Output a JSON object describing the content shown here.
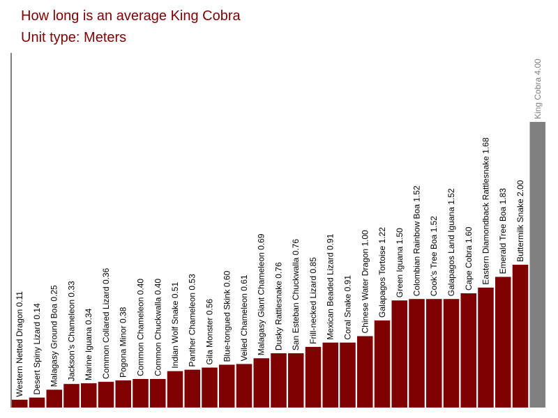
{
  "colors": {
    "bar": "#7f0000",
    "highlight_bar": "#808080",
    "label": "#000000",
    "highlight_label": "#808080",
    "title": "#7f0000",
    "axis": "#000000"
  },
  "chart_data": {
    "type": "bar",
    "title": "How long is an average King Cobra",
    "subtitle": "Unit type: Meters",
    "xlabel": "",
    "ylabel": "",
    "ylim": [
      0,
      4.5
    ],
    "grid": false,
    "categories": [
      "Western Netted Dragon",
      "Desert Spiny Lizard",
      "Malagasy Ground Boa",
      "Jackson’s Chameleon",
      "Marine Iguana",
      "Common Collared Lizard",
      "Pogona Minor",
      "Common Chameleon",
      "Common Chuckwalla",
      "Indian Wolf Snake",
      "Panther Chameleon",
      "Gila Monster",
      "Blue-tongued Skink",
      "Veiled Chameleon",
      "Malagasy Giant Chameleon",
      "Dusky Rattlesnake",
      "San Esteban Chuckwalla",
      "Frill-necked Lizard",
      "Mexican Beaded Lizard",
      "Coral Snake",
      "Chinese Water Dragon",
      "Galapagos Tortoise",
      "Green Iguana",
      "Colombian Rainbow Boa",
      "Cook’s Tree Boa",
      "Galapagos Land Iguana ",
      "Cape Cobra",
      "Eastern Diamondback Rattlesnake",
      "Emerald Tree Boa",
      "Buttermilk Snake",
      "King Cobra"
    ],
    "values": [
      0.11,
      0.14,
      0.25,
      0.33,
      0.34,
      0.36,
      0.38,
      0.4,
      0.4,
      0.51,
      0.53,
      0.56,
      0.6,
      0.61,
      0.69,
      0.76,
      0.76,
      0.85,
      0.91,
      0.91,
      1.0,
      1.22,
      1.5,
      1.52,
      1.52,
      1.52,
      1.6,
      1.68,
      1.83,
      2.0,
      4.0
    ],
    "labels": [
      "Western Netted Dragon 0.11",
      "Desert Spiny Lizard 0.14",
      "Malagasy Ground Boa 0.25",
      "Jackson’s Chameleon 0.33",
      "Marine Iguana 0.34",
      "Common Collared Lizard 0.36",
      "Pogona Minor 0.38",
      "Common Chameleon 0.40",
      "Common Chuckwalla 0.40",
      "Indian Wolf Snake 0.51",
      "Panther Chameleon 0.53",
      "Gila Monster 0.56",
      "Blue-tongued Skink 0.60",
      "Veiled Chameleon 0.61",
      "Malagasy Giant Chameleon 0.69",
      "Dusky Rattlesnake 0.76",
      "San Esteban Chuckwalla 0.76",
      "Frill-necked Lizard 0.85",
      "Mexican Beaded Lizard 0.91",
      "Coral Snake 0.91",
      "Chinese Water Dragon 1.00",
      "Galapagos Tortoise 1.22",
      "Green Iguana 1.50",
      "Colombian Rainbow Boa 1.52",
      "Cook’s Tree Boa 1.52",
      "Galapagos Land Iguana  1.52",
      "Cape Cobra 1.60",
      "Eastern Diamondback Rattlesnake 1.68",
      "Emerald Tree Boa 1.83",
      "Buttermilk Snake 2.00",
      "King Cobra 4.00"
    ],
    "highlight": "King Cobra"
  }
}
